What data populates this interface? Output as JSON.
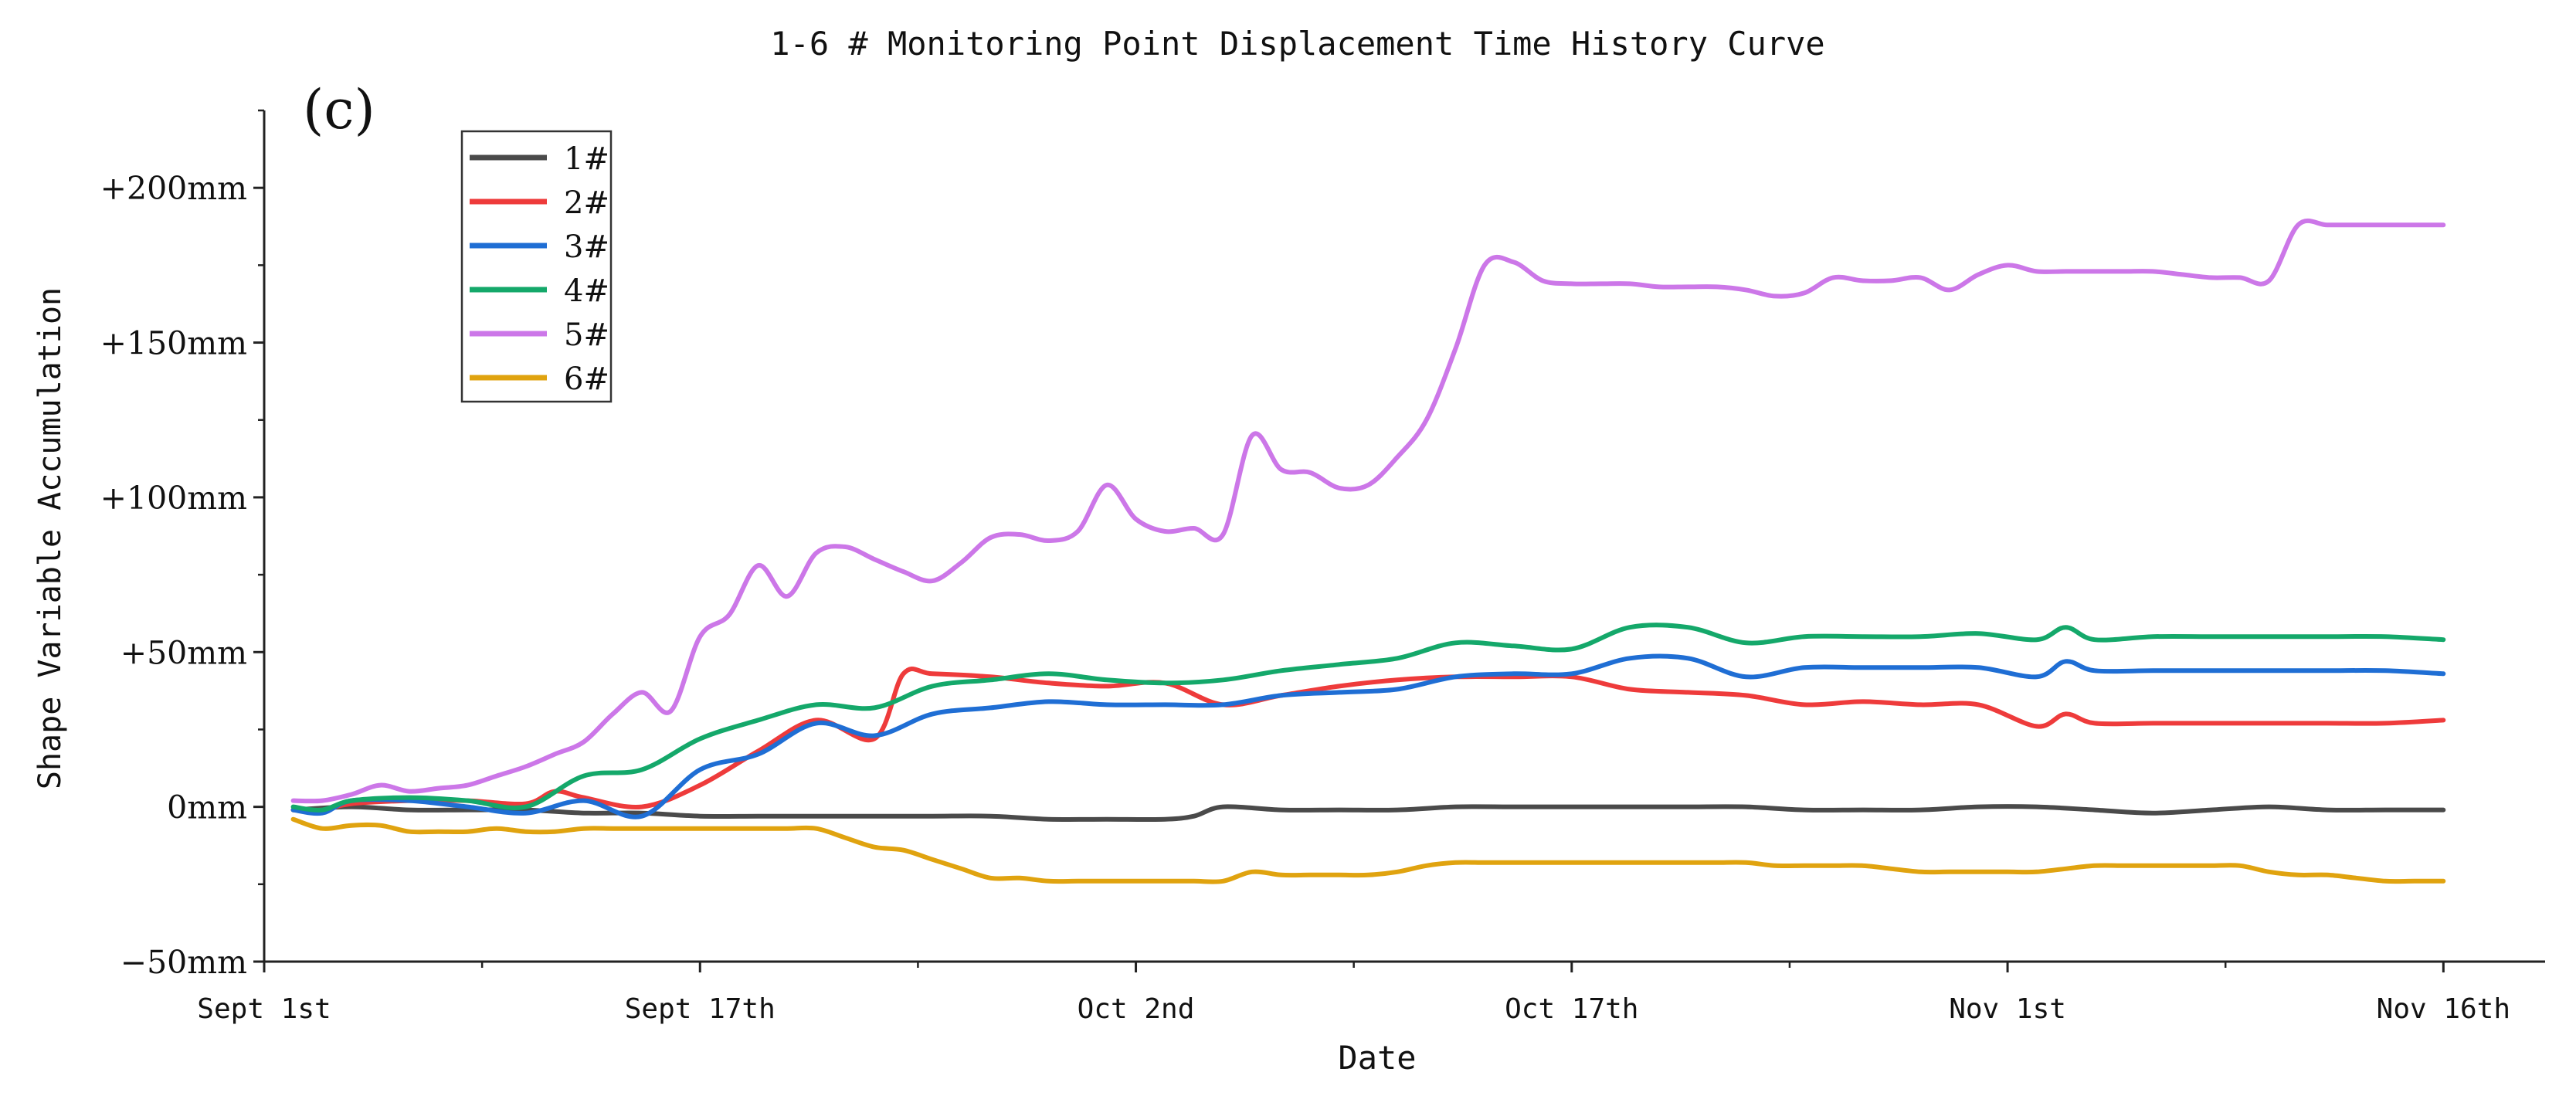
{
  "chart_data": {
    "type": "line",
    "title": "1-6 # Monitoring Point Displacement Time History Curve",
    "panel_label": "(c)",
    "xlabel": "Date",
    "ylabel": "Shape Variable Accumulation",
    "x_ticks": [
      {
        "day": 0,
        "label": "Sept 1st"
      },
      {
        "day": 15,
        "label": "Sept 17th"
      },
      {
        "day": 30,
        "label": "Oct 2nd"
      },
      {
        "day": 45,
        "label": "Oct 17th"
      },
      {
        "day": 60,
        "label": "Nov 1st"
      },
      {
        "day": 75,
        "label": "Nov 16th"
      }
    ],
    "y_ticks": [
      {
        "value": -50,
        "label": "−50mm"
      },
      {
        "value": 0,
        "label": "0mm"
      },
      {
        "value": 50,
        "label": "+50mm"
      },
      {
        "value": 100,
        "label": "+100mm"
      },
      {
        "value": 150,
        "label": "+150mm"
      },
      {
        "value": 200,
        "label": "+200mm"
      }
    ],
    "xlim": [
      0,
      78.5
    ],
    "ylim": [
      -50,
      225
    ],
    "legend_position": "top-left",
    "grid": false,
    "series": [
      {
        "name": "1#",
        "color": "#4a4a4a",
        "x": [
          1,
          3,
          5,
          7,
          9,
          11,
          13,
          15,
          17,
          19,
          21,
          23,
          25,
          27,
          29,
          31,
          32,
          33,
          35,
          37,
          39,
          41,
          43,
          45,
          47,
          49,
          51,
          53,
          55,
          57,
          59,
          61,
          63,
          65,
          67,
          69,
          71,
          73,
          75
        ],
        "y": [
          -1,
          0,
          -1,
          -1,
          -1,
          -2,
          -2,
          -3,
          -3,
          -3,
          -3,
          -3,
          -3,
          -4,
          -4,
          -4,
          -3,
          0,
          -1,
          -1,
          -1,
          0,
          0,
          0,
          0,
          0,
          0,
          -1,
          -1,
          -1,
          0,
          0,
          -1,
          -2,
          -1,
          0,
          -1,
          -1,
          -1
        ]
      },
      {
        "name": "2#",
        "color": "#ee3b3b",
        "x": [
          1,
          2,
          3,
          5,
          7,
          9,
          10,
          11,
          13,
          15,
          17,
          19,
          21,
          22,
          23,
          25,
          27,
          29,
          31,
          33,
          35,
          37,
          39,
          41,
          43,
          45,
          47,
          49,
          51,
          53,
          55,
          57,
          59,
          61,
          62,
          63,
          65,
          67,
          69,
          71,
          73,
          75
        ],
        "y": [
          -1,
          -1,
          1,
          2,
          2,
          1,
          5,
          3,
          0,
          7,
          18,
          28,
          22,
          43,
          43,
          42,
          40,
          39,
          40,
          33,
          36,
          39,
          41,
          42,
          42,
          42,
          38,
          37,
          36,
          33,
          34,
          33,
          33,
          26,
          30,
          27,
          27,
          27,
          27,
          27,
          27,
          28
        ]
      },
      {
        "name": "3#",
        "color": "#1f6ed4",
        "x": [
          1,
          2,
          3,
          5,
          7,
          9,
          11,
          13,
          15,
          17,
          19,
          21,
          23,
          25,
          27,
          29,
          31,
          33,
          35,
          37,
          39,
          41,
          43,
          45,
          47,
          49,
          51,
          53,
          55,
          57,
          59,
          61,
          62,
          63,
          65,
          67,
          69,
          71,
          73,
          75
        ],
        "y": [
          -1,
          -2,
          2,
          2,
          0,
          -2,
          2,
          -3,
          12,
          17,
          27,
          23,
          30,
          32,
          34,
          33,
          33,
          33,
          36,
          37,
          38,
          42,
          43,
          43,
          48,
          48,
          42,
          45,
          45,
          45,
          45,
          42,
          47,
          44,
          44,
          44,
          44,
          44,
          44,
          43
        ]
      },
      {
        "name": "4#",
        "color": "#14a86a",
        "x": [
          1,
          2,
          3,
          5,
          7,
          9,
          11,
          13,
          15,
          17,
          19,
          21,
          23,
          25,
          27,
          29,
          31,
          33,
          35,
          37,
          39,
          41,
          43,
          45,
          47,
          49,
          51,
          53,
          55,
          57,
          59,
          61,
          62,
          63,
          65,
          67,
          69,
          71,
          73,
          75
        ],
        "y": [
          0,
          -1,
          2,
          3,
          2,
          0,
          10,
          12,
          22,
          28,
          33,
          32,
          39,
          41,
          43,
          41,
          40,
          41,
          44,
          46,
          48,
          53,
          52,
          51,
          58,
          58,
          53,
          55,
          55,
          55,
          56,
          54,
          58,
          54,
          55,
          55,
          55,
          55,
          55,
          54
        ]
      },
      {
        "name": "5#",
        "color": "#cc77e8",
        "x": [
          1,
          2,
          3,
          4,
          5,
          6,
          7,
          8,
          9,
          10,
          11,
          12,
          13,
          14,
          15,
          16,
          17,
          18,
          19,
          20,
          21,
          22,
          23,
          24,
          25,
          26,
          27,
          28,
          29,
          30,
          31,
          32,
          33,
          34,
          35,
          36,
          37,
          38,
          39,
          40,
          41,
          42,
          43,
          44,
          45,
          46,
          47,
          48,
          49,
          50,
          51,
          52,
          53,
          54,
          55,
          56,
          57,
          58,
          59,
          60,
          61,
          62,
          63,
          64,
          65,
          66,
          67,
          68,
          69,
          70,
          71,
          72,
          73,
          74,
          75
        ],
        "y": [
          2,
          2,
          4,
          7,
          5,
          6,
          7,
          10,
          13,
          17,
          21,
          30,
          37,
          31,
          55,
          62,
          78,
          68,
          82,
          84,
          80,
          76,
          73,
          79,
          87,
          88,
          86,
          89,
          104,
          93,
          89,
          90,
          88,
          120,
          109,
          108,
          103,
          104,
          113,
          125,
          148,
          175,
          176,
          170,
          169,
          169,
          169,
          168,
          168,
          168,
          167,
          165,
          166,
          171,
          170,
          170,
          171,
          167,
          172,
          175,
          173,
          173,
          173,
          173,
          173,
          172,
          171,
          171,
          170,
          188,
          188,
          188,
          188,
          188,
          188
        ]
      },
      {
        "name": "6#",
        "color": "#e0a30f",
        "x": [
          1,
          2,
          3,
          4,
          5,
          6,
          7,
          8,
          9,
          10,
          11,
          12,
          13,
          14,
          15,
          16,
          17,
          18,
          19,
          20,
          21,
          22,
          23,
          24,
          25,
          26,
          27,
          28,
          29,
          30,
          31,
          32,
          33,
          34,
          35,
          36,
          37,
          38,
          39,
          40,
          41,
          42,
          43,
          44,
          45,
          46,
          47,
          48,
          49,
          50,
          51,
          52,
          53,
          54,
          55,
          56,
          57,
          58,
          59,
          60,
          61,
          62,
          63,
          64,
          65,
          66,
          67,
          68,
          69,
          70,
          71,
          72,
          73,
          74,
          75
        ],
        "y": [
          -4,
          -7,
          -6,
          -6,
          -8,
          -8,
          -8,
          -7,
          -8,
          -8,
          -7,
          -7,
          -7,
          -7,
          -7,
          -7,
          -7,
          -7,
          -7,
          -10,
          -13,
          -14,
          -17,
          -20,
          -23,
          -23,
          -24,
          -24,
          -24,
          -24,
          -24,
          -24,
          -24,
          -21,
          -22,
          -22,
          -22,
          -22,
          -21,
          -19,
          -18,
          -18,
          -18,
          -18,
          -18,
          -18,
          -18,
          -18,
          -18,
          -18,
          -18,
          -19,
          -19,
          -19,
          -19,
          -20,
          -21,
          -21,
          -21,
          -21,
          -21,
          -20,
          -19,
          -19,
          -19,
          -19,
          -19,
          -19,
          -21,
          -22,
          -22,
          -23,
          -24,
          -24,
          -24
        ]
      }
    ]
  }
}
